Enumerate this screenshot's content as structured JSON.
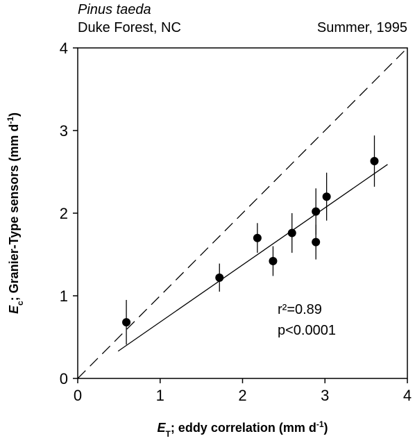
{
  "chart_data": {
    "type": "scatter",
    "title": "Pinus taeda",
    "subtitle_left": "Duke Forest, NC",
    "subtitle_right": "Summer, 1995",
    "x_label": [
      "E",
      "T",
      "; eddy correlation (mm d",
      "-1",
      ")"
    ],
    "y_label": [
      "E",
      "c",
      "; Granier-Type sensors (mm d",
      "-1",
      ")"
    ],
    "x": [
      0.59,
      1.72,
      2.18,
      2.37,
      2.6,
      2.89,
      2.89,
      3.02,
      3.6
    ],
    "values": [
      0.68,
      1.22,
      1.7,
      1.42,
      1.76,
      2.02,
      1.65,
      2.2,
      2.63
    ],
    "errors": [
      0.27,
      0.17,
      0.18,
      0.18,
      0.24,
      0.28,
      0.21,
      0.29,
      0.31
    ],
    "color": "#000000",
    "fit_line": {
      "x": [
        0.49,
        3.76
      ],
      "y": [
        0.33,
        2.59
      ]
    },
    "identity_line": {
      "x": [
        0,
        4
      ],
      "y": [
        0,
        4
      ]
    },
    "annotations": [
      "r²=0.89",
      "p<0.0001"
    ],
    "xlim": [
      0,
      4
    ],
    "ylim": [
      0,
      4
    ],
    "xticks": [
      0,
      1,
      2,
      3,
      4
    ],
    "yticks": [
      0,
      1,
      2,
      3,
      4
    ]
  }
}
